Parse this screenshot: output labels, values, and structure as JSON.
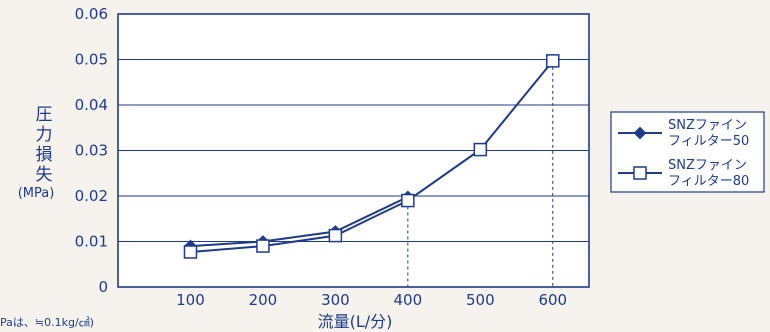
{
  "chart_data": {
    "type": "line",
    "ylabel_lines": [
      "圧",
      "力",
      "損",
      "失"
    ],
    "ylabel_unit": "(MPa)",
    "xlabel": "流量(L/分)",
    "note": "Paは、≒0.1kg/㎠)",
    "x": [
      100,
      200,
      300,
      400,
      500,
      600
    ],
    "xlim": [
      0,
      650
    ],
    "ylim": [
      0,
      0.06
    ],
    "xticks": [
      "100",
      "200",
      "300",
      "400",
      "500",
      "600"
    ],
    "yticks": [
      "0",
      "0.01",
      "0.02",
      "0.03",
      "0.04",
      "0.05",
      "0.06"
    ],
    "grid": true,
    "legend_position": "right",
    "reference_lines_x": [
      400,
      600
    ],
    "series": [
      {
        "name": "SNZファイン フィルター50",
        "name_lines": [
          "SNZファイン",
          "フィルター50"
        ],
        "marker": "filled-diamond",
        "x": [
          100,
          200,
          300,
          400
        ],
        "values": [
          0.009,
          0.01,
          0.0122,
          0.0198
        ]
      },
      {
        "name": "SNZファイン フィルター80",
        "name_lines": [
          "SNZファイン",
          "フィルター80"
        ],
        "marker": "open-square",
        "x": [
          100,
          200,
          300,
          400,
          500,
          600
        ],
        "values": [
          0.0077,
          0.009,
          0.0113,
          0.019,
          0.0302,
          0.0497
        ]
      }
    ],
    "colors": {
      "line": "#1f3a8a",
      "grid": "#1f3a8a",
      "axis": "#1f3a8a",
      "background": "#f6f3ee"
    }
  }
}
